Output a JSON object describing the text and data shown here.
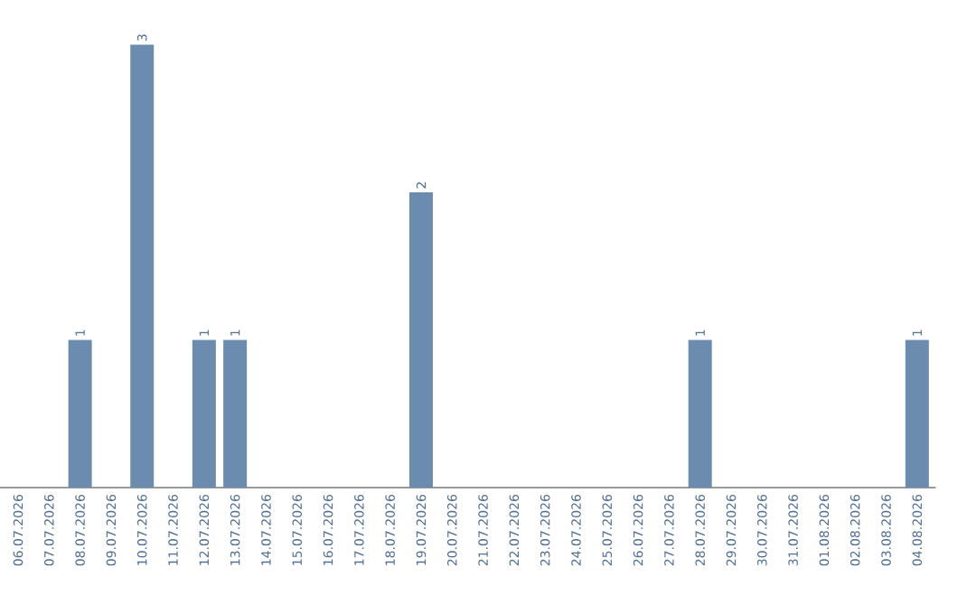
{
  "chart_data": {
    "type": "bar",
    "categories": [
      "06.07.2026",
      "07.07.2026",
      "08.07.2026",
      "09.07.2026",
      "10.07.2026",
      "11.07.2026",
      "12.07.2026",
      "13.07.2026",
      "14.07.2026",
      "15.07.2026",
      "16.07.2026",
      "17.07.2026",
      "18.07.2026",
      "19.07.2026",
      "20.07.2026",
      "21.07.2026",
      "22.07.2026",
      "23.07.2026",
      "24.07.2026",
      "25.07.2026",
      "26.07.2026",
      "27.07.2026",
      "28.07.2026",
      "29.07.2026",
      "30.07.2026",
      "31.07.2026",
      "01.08.2026",
      "02.08.2026",
      "03.08.2026",
      "04.08.2026"
    ],
    "values": [
      0,
      0,
      1,
      0,
      3,
      0,
      1,
      1,
      0,
      0,
      0,
      0,
      0,
      2,
      0,
      0,
      0,
      0,
      0,
      0,
      0,
      0,
      1,
      0,
      0,
      0,
      0,
      0,
      0,
      1
    ],
    "value_labels": [
      null,
      null,
      "1",
      null,
      "3",
      null,
      "1",
      "1",
      null,
      null,
      null,
      null,
      null,
      "2",
      null,
      null,
      null,
      null,
      null,
      null,
      null,
      null,
      "1",
      null,
      null,
      null,
      null,
      null,
      null,
      "1"
    ],
    "color": "#6b8cae"
  }
}
